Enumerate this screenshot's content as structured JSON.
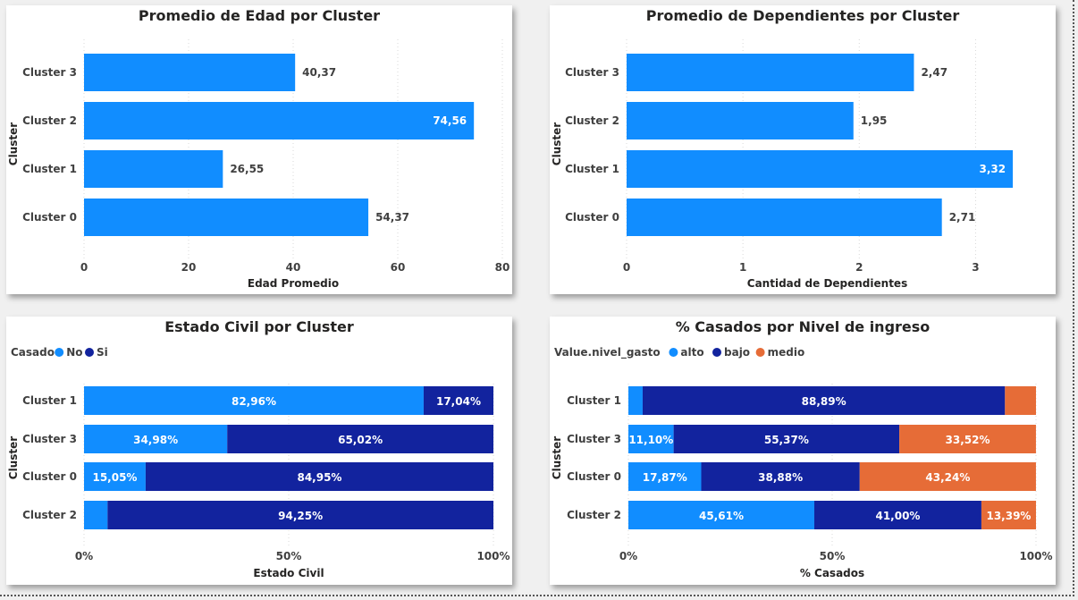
{
  "chart_data": [
    {
      "type": "bar",
      "orientation": "horizontal",
      "title": "Promedio de Edad por Cluster",
      "xlabel": "Edad Promedio",
      "ylabel": "Cluster",
      "categories": [
        "Cluster 3",
        "Cluster 2",
        "Cluster 1",
        "Cluster 0"
      ],
      "values": [
        40.37,
        74.56,
        26.55,
        54.37
      ],
      "labels": [
        "40,37",
        "74,56",
        "26,55",
        "54,37"
      ],
      "xlim": [
        0,
        80
      ],
      "xticks": [
        0,
        20,
        40,
        60,
        80
      ],
      "xtick_labels": [
        "0",
        "20",
        "40",
        "60",
        "80"
      ],
      "color": "#118DFF"
    },
    {
      "type": "bar",
      "orientation": "horizontal",
      "title": "Promedio de Dependientes por Cluster",
      "xlabel": "Cantidad de Dependientes",
      "ylabel": "Cluster",
      "categories": [
        "Cluster 3",
        "Cluster 2",
        "Cluster 1",
        "Cluster 0"
      ],
      "values": [
        2.47,
        1.95,
        3.32,
        2.71
      ],
      "labels": [
        "2,47",
        "1,95",
        "3,32",
        "2,71"
      ],
      "xlim": [
        0,
        3.45
      ],
      "xticks": [
        0,
        1,
        2,
        3
      ],
      "xtick_labels": [
        "0",
        "1",
        "2",
        "3"
      ],
      "color": "#118DFF"
    },
    {
      "type": "bar",
      "orientation": "horizontal",
      "stacked": "percent",
      "title": "Estado Civil por Cluster",
      "xlabel": "Estado Civil",
      "ylabel": "Cluster",
      "legend_title": "Casado",
      "categories": [
        "Cluster 1",
        "Cluster 3",
        "Cluster 0",
        "Cluster 2"
      ],
      "series": [
        {
          "name": "No",
          "color": "#118DFF",
          "values": [
            82.96,
            34.98,
            15.05,
            5.75
          ],
          "labels": [
            "82,96%",
            "34,98%",
            "15,05%",
            ""
          ]
        },
        {
          "name": "Si",
          "color": "#12239E",
          "values": [
            17.04,
            65.02,
            84.95,
            94.25
          ],
          "labels": [
            "17,04%",
            "65,02%",
            "84,95%",
            "94,25%"
          ]
        }
      ],
      "xticks": [
        0,
        50,
        100
      ],
      "xtick_labels": [
        "0%",
        "50%",
        "100%"
      ]
    },
    {
      "type": "bar",
      "orientation": "horizontal",
      "stacked": "percent",
      "title": "% Casados por Nivel de ingreso",
      "xlabel": "% Casados",
      "ylabel": "Cluster",
      "legend_title": "Value.nivel_gasto",
      "categories": [
        "Cluster 1",
        "Cluster 3",
        "Cluster 0",
        "Cluster 2"
      ],
      "series": [
        {
          "name": "alto",
          "color": "#118DFF",
          "values": [
            3.5,
            11.1,
            17.87,
            45.61
          ],
          "labels": [
            "",
            "11,10%",
            "17,87%",
            "45,61%"
          ]
        },
        {
          "name": "bajo",
          "color": "#12239E",
          "values": [
            88.89,
            55.37,
            38.88,
            41.0
          ],
          "labels": [
            "88,89%",
            "55,37%",
            "38,88%",
            "41,00%"
          ]
        },
        {
          "name": "medio",
          "color": "#E66C37",
          "values": [
            7.61,
            33.52,
            43.24,
            13.39
          ],
          "labels": [
            "",
            "33,52%",
            "43,24%",
            "13,39%"
          ]
        }
      ],
      "xticks": [
        0,
        50,
        100
      ],
      "xtick_labels": [
        "0%",
        "50%",
        "100%"
      ]
    }
  ]
}
